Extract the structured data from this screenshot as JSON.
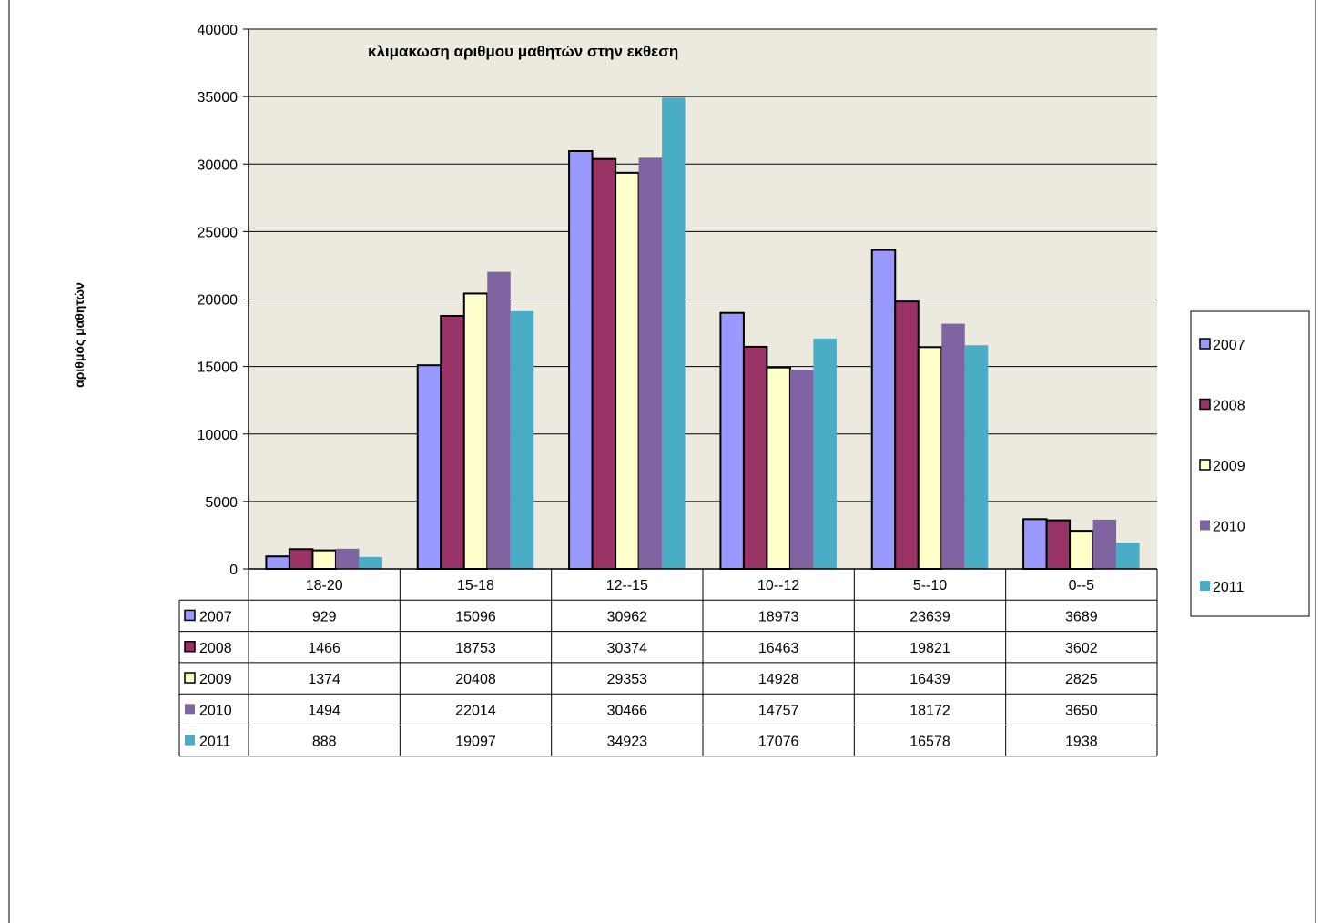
{
  "chart_data": {
    "type": "bar",
    "title": "κλιμακωση αριθμου μαθητών στην εκθεση",
    "xlabel": "",
    "ylabel": "αριθμός μαθητών",
    "ylim": [
      0,
      40000
    ],
    "yticks": [
      0,
      5000,
      10000,
      15000,
      20000,
      25000,
      30000,
      35000,
      40000
    ],
    "grid": true,
    "legend_position": "right",
    "plot_background": "#ece9de",
    "categories": [
      "18-20",
      "15-18",
      "12--15",
      "10--12",
      "5--10",
      "0--5"
    ],
    "series": [
      {
        "name": "2007",
        "color": "#9999ff",
        "values": [
          929,
          15096,
          30962,
          18973,
          23639,
          3689
        ]
      },
      {
        "name": "2008",
        "color": "#993366",
        "values": [
          1466,
          18753,
          30374,
          16463,
          19821,
          3602
        ]
      },
      {
        "name": "2009",
        "color": "#ffffcc",
        "values": [
          1374,
          20408,
          29353,
          14928,
          16439,
          2825
        ]
      },
      {
        "name": "2010",
        "color": "#8064a2",
        "values": [
          1494,
          22014,
          30466,
          14757,
          18172,
          3650
        ]
      },
      {
        "name": "2011",
        "color": "#4bacc6",
        "values": [
          888,
          19097,
          34923,
          17076,
          16578,
          1938
        ]
      }
    ]
  }
}
